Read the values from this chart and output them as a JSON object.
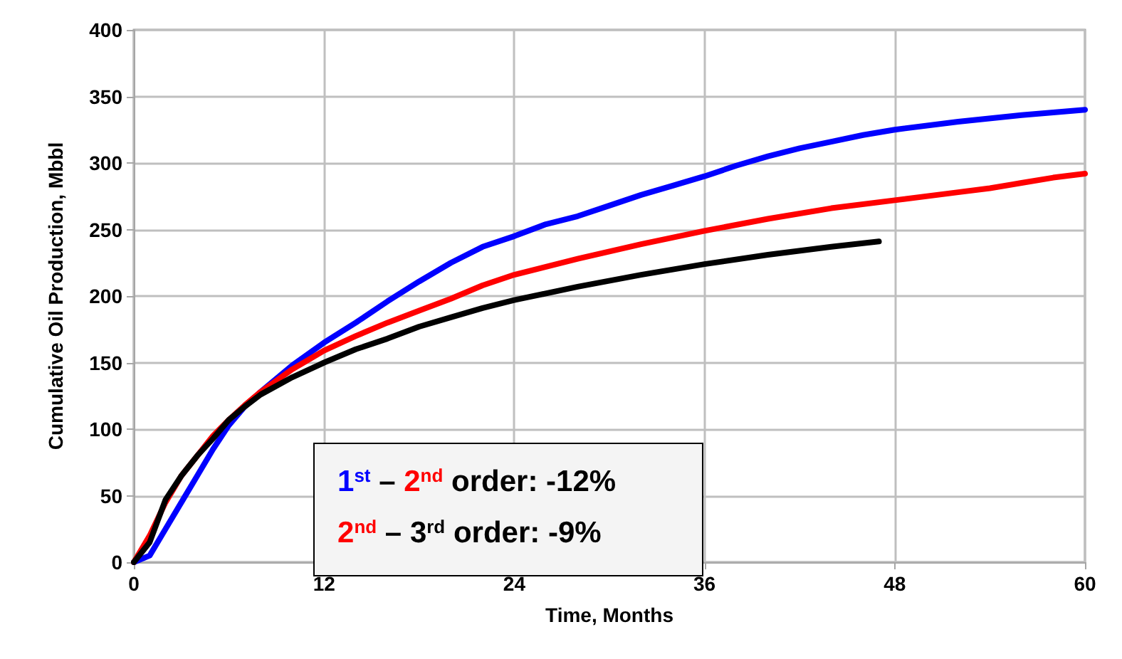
{
  "chart_data": {
    "type": "line",
    "xlabel": "Time, Months",
    "ylabel": "Cumulative Oil Production, Mbbl",
    "xlim": [
      0,
      60
    ],
    "xticks": [
      0,
      12,
      24,
      36,
      48,
      60
    ],
    "ylim": [
      0,
      400
    ],
    "yticks": [
      0,
      50,
      100,
      150,
      200,
      250,
      300,
      350,
      400
    ],
    "grid": true,
    "marker": "none",
    "line_style": "solid",
    "annotations": [
      "1$^{st}$ – 2$^{nd}$ order: -12%",
      "2$^{nd}$ – 3$^{rd}$ order: -9%"
    ],
    "series": [
      {
        "color": "#0000ff",
        "x": [
          0,
          1,
          2,
          3,
          4,
          5,
          6,
          7,
          8,
          10,
          12,
          14,
          16,
          18,
          20,
          22,
          24,
          26,
          28,
          30,
          32,
          34,
          36,
          38,
          40,
          42,
          44,
          46,
          48,
          52,
          56,
          60
        ],
        "values": [
          0,
          5,
          25,
          45,
          65,
          85,
          103,
          117,
          128,
          148,
          165,
          180,
          196,
          211,
          225,
          237,
          245,
          254,
          260,
          268,
          276,
          283,
          290,
          298,
          305,
          311,
          316,
          321,
          325,
          331,
          336,
          340
        ]
      },
      {
        "color": "#ff0000",
        "x": [
          0,
          1,
          2,
          3,
          4,
          5,
          6,
          7,
          8,
          10,
          12,
          14,
          16,
          18,
          20,
          22,
          24,
          28,
          32,
          36,
          40,
          44,
          48,
          52,
          54,
          56,
          58,
          60
        ],
        "values": [
          0,
          20,
          45,
          65,
          80,
          95,
          107,
          118,
          128,
          145,
          159,
          170,
          180,
          189,
          198,
          208,
          216,
          228,
          239,
          249,
          258,
          266,
          272,
          278,
          281,
          285,
          289,
          292
        ]
      },
      {
        "color": "#000000",
        "x": [
          0,
          1,
          2,
          3,
          4,
          5,
          6,
          7,
          8,
          10,
          12,
          14,
          16,
          18,
          20,
          22,
          24,
          28,
          32,
          36,
          40,
          44,
          47
        ],
        "values": [
          0,
          15,
          47,
          65,
          80,
          93,
          107,
          117,
          126,
          139,
          150,
          160,
          168,
          177,
          184,
          191,
          197,
          207,
          216,
          224,
          231,
          237,
          241
        ]
      }
    ]
  }
}
